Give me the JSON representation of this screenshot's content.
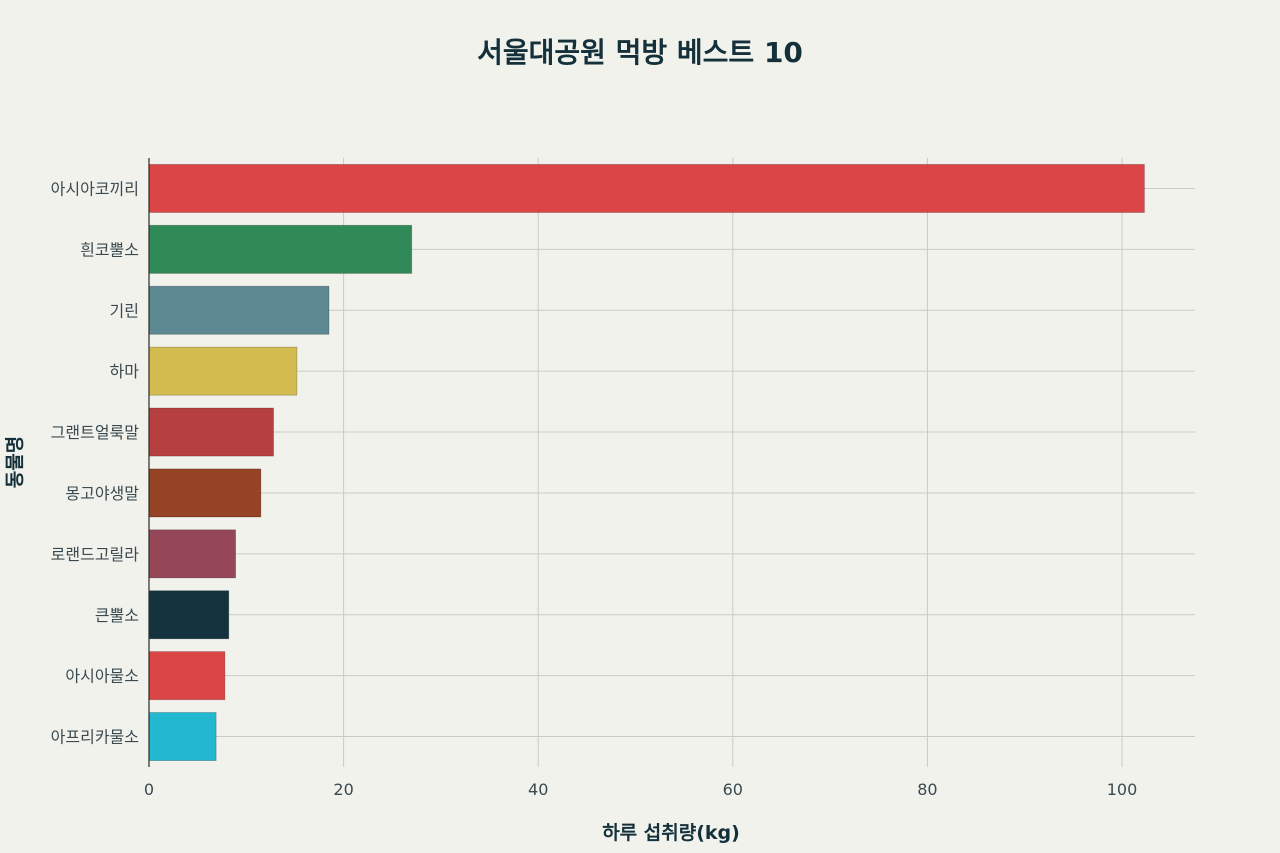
{
  "chart_data": {
    "type": "bar",
    "orientation": "horizontal",
    "title": "서울대공원 먹방 베스트 10",
    "xlabel": "하루 섭취량(kg)",
    "ylabel": "동물명",
    "categories": [
      "아시아코끼리",
      "흰코뿔소",
      "기린",
      "하마",
      "그랜트얼룩말",
      "몽고야생말",
      "로랜드고릴라",
      "큰뿔소",
      "아시아물소",
      "아프리카물소"
    ],
    "values": [
      102.3,
      27.0,
      18.5,
      15.2,
      12.8,
      11.5,
      8.9,
      8.2,
      7.8,
      6.9
    ],
    "colors": [
      "#db4548",
      "#2f8a58",
      "#5d8a92",
      "#d4bb50",
      "#b5403f",
      "#964325",
      "#954757",
      "#14333f",
      "#db4548",
      "#22b9d0"
    ],
    "xlim": [
      0,
      107.5
    ],
    "xticks": [
      0,
      20,
      40,
      60,
      80,
      100
    ],
    "grid": true,
    "legend": "none"
  }
}
